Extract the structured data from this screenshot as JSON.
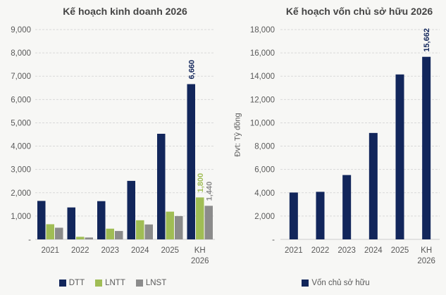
{
  "colors": {
    "navy": "#12265b",
    "green": "#a0bd55",
    "gray": "#8b8b8b",
    "text": "#595959",
    "grid": "#d9d9d9"
  },
  "chart_data": [
    {
      "type": "bar",
      "title": "Kế hoạch kinh doanh 2026",
      "categories": [
        "2021",
        "2022",
        "2023",
        "2024",
        "2025",
        "KH 2026"
      ],
      "series": [
        {
          "name": "DTT",
          "color": "#12265b",
          "values": [
            1650,
            1370,
            1640,
            2510,
            4530,
            6660
          ]
        },
        {
          "name": "LNTT",
          "color": "#a0bd55",
          "values": [
            650,
            110,
            460,
            820,
            1190,
            1800
          ]
        },
        {
          "name": "LNST",
          "color": "#8b8b8b",
          "values": [
            500,
            80,
            360,
            640,
            1000,
            1440
          ]
        }
      ],
      "ylim": [
        0,
        9000
      ],
      "ytick_step": 1000,
      "zero_tick_label": "-",
      "grid": true,
      "legend_position": "bottom",
      "annotations": [
        {
          "category": "KH 2026",
          "series": "DTT",
          "text": "6,660"
        },
        {
          "category": "KH 2026",
          "series": "LNTT",
          "text": "1,800"
        },
        {
          "category": "KH 2026",
          "series": "LNST",
          "text": "1,440"
        }
      ]
    },
    {
      "type": "bar",
      "title": "Kế hoạch vốn chủ sở hữu 2026",
      "ylabel": "Đvt: Tỷ đồng",
      "categories": [
        "2021",
        "2022",
        "2023",
        "2024",
        "2025",
        "KH 2026"
      ],
      "series": [
        {
          "name": "Vốn chủ sở hữu",
          "color": "#12265b",
          "values": [
            4020,
            4080,
            5520,
            9130,
            14150,
            15662
          ]
        }
      ],
      "ylim": [
        0,
        18000
      ],
      "ytick_step": 2000,
      "zero_tick_label": "-",
      "grid": true,
      "legend_position": "bottom",
      "annotations": [
        {
          "category": "KH 2026",
          "series": "Vốn chủ sở hữu",
          "text": "15,662"
        }
      ]
    }
  ]
}
